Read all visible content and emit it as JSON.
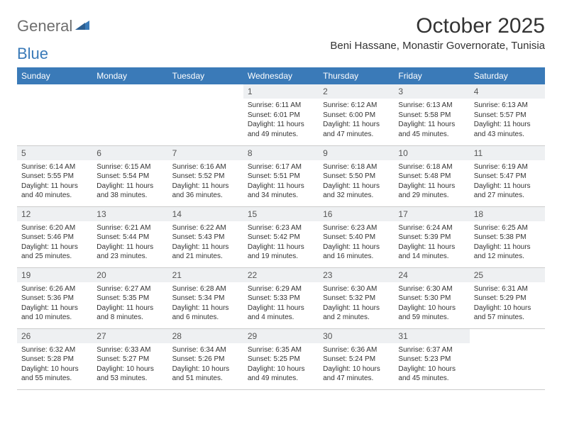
{
  "brand": {
    "part1": "General",
    "part2": "Blue"
  },
  "header": {
    "title": "October 2025",
    "location": "Beni Hassane, Monastir Governorate, Tunisia"
  },
  "colors": {
    "header_bg": "#3a7ab8",
    "header_fg": "#ffffff",
    "daynum_bg": "#eef0f2",
    "text": "#333333",
    "logo_gray": "#6e6e6e",
    "logo_blue": "#3a7ab8"
  },
  "dayNames": [
    "Sunday",
    "Monday",
    "Tuesday",
    "Wednesday",
    "Thursday",
    "Friday",
    "Saturday"
  ],
  "weeks": [
    [
      {
        "empty": true
      },
      {
        "empty": true
      },
      {
        "empty": true
      },
      {
        "num": "1",
        "sunrise": "Sunrise: 6:11 AM",
        "sunset": "Sunset: 6:01 PM",
        "day1": "Daylight: 11 hours",
        "day2": "and 49 minutes."
      },
      {
        "num": "2",
        "sunrise": "Sunrise: 6:12 AM",
        "sunset": "Sunset: 6:00 PM",
        "day1": "Daylight: 11 hours",
        "day2": "and 47 minutes."
      },
      {
        "num": "3",
        "sunrise": "Sunrise: 6:13 AM",
        "sunset": "Sunset: 5:58 PM",
        "day1": "Daylight: 11 hours",
        "day2": "and 45 minutes."
      },
      {
        "num": "4",
        "sunrise": "Sunrise: 6:13 AM",
        "sunset": "Sunset: 5:57 PM",
        "day1": "Daylight: 11 hours",
        "day2": "and 43 minutes."
      }
    ],
    [
      {
        "num": "5",
        "sunrise": "Sunrise: 6:14 AM",
        "sunset": "Sunset: 5:55 PM",
        "day1": "Daylight: 11 hours",
        "day2": "and 40 minutes."
      },
      {
        "num": "6",
        "sunrise": "Sunrise: 6:15 AM",
        "sunset": "Sunset: 5:54 PM",
        "day1": "Daylight: 11 hours",
        "day2": "and 38 minutes."
      },
      {
        "num": "7",
        "sunrise": "Sunrise: 6:16 AM",
        "sunset": "Sunset: 5:52 PM",
        "day1": "Daylight: 11 hours",
        "day2": "and 36 minutes."
      },
      {
        "num": "8",
        "sunrise": "Sunrise: 6:17 AM",
        "sunset": "Sunset: 5:51 PM",
        "day1": "Daylight: 11 hours",
        "day2": "and 34 minutes."
      },
      {
        "num": "9",
        "sunrise": "Sunrise: 6:18 AM",
        "sunset": "Sunset: 5:50 PM",
        "day1": "Daylight: 11 hours",
        "day2": "and 32 minutes."
      },
      {
        "num": "10",
        "sunrise": "Sunrise: 6:18 AM",
        "sunset": "Sunset: 5:48 PM",
        "day1": "Daylight: 11 hours",
        "day2": "and 29 minutes."
      },
      {
        "num": "11",
        "sunrise": "Sunrise: 6:19 AM",
        "sunset": "Sunset: 5:47 PM",
        "day1": "Daylight: 11 hours",
        "day2": "and 27 minutes."
      }
    ],
    [
      {
        "num": "12",
        "sunrise": "Sunrise: 6:20 AM",
        "sunset": "Sunset: 5:46 PM",
        "day1": "Daylight: 11 hours",
        "day2": "and 25 minutes."
      },
      {
        "num": "13",
        "sunrise": "Sunrise: 6:21 AM",
        "sunset": "Sunset: 5:44 PM",
        "day1": "Daylight: 11 hours",
        "day2": "and 23 minutes."
      },
      {
        "num": "14",
        "sunrise": "Sunrise: 6:22 AM",
        "sunset": "Sunset: 5:43 PM",
        "day1": "Daylight: 11 hours",
        "day2": "and 21 minutes."
      },
      {
        "num": "15",
        "sunrise": "Sunrise: 6:23 AM",
        "sunset": "Sunset: 5:42 PM",
        "day1": "Daylight: 11 hours",
        "day2": "and 19 minutes."
      },
      {
        "num": "16",
        "sunrise": "Sunrise: 6:23 AM",
        "sunset": "Sunset: 5:40 PM",
        "day1": "Daylight: 11 hours",
        "day2": "and 16 minutes."
      },
      {
        "num": "17",
        "sunrise": "Sunrise: 6:24 AM",
        "sunset": "Sunset: 5:39 PM",
        "day1": "Daylight: 11 hours",
        "day2": "and 14 minutes."
      },
      {
        "num": "18",
        "sunrise": "Sunrise: 6:25 AM",
        "sunset": "Sunset: 5:38 PM",
        "day1": "Daylight: 11 hours",
        "day2": "and 12 minutes."
      }
    ],
    [
      {
        "num": "19",
        "sunrise": "Sunrise: 6:26 AM",
        "sunset": "Sunset: 5:36 PM",
        "day1": "Daylight: 11 hours",
        "day2": "and 10 minutes."
      },
      {
        "num": "20",
        "sunrise": "Sunrise: 6:27 AM",
        "sunset": "Sunset: 5:35 PM",
        "day1": "Daylight: 11 hours",
        "day2": "and 8 minutes."
      },
      {
        "num": "21",
        "sunrise": "Sunrise: 6:28 AM",
        "sunset": "Sunset: 5:34 PM",
        "day1": "Daylight: 11 hours",
        "day2": "and 6 minutes."
      },
      {
        "num": "22",
        "sunrise": "Sunrise: 6:29 AM",
        "sunset": "Sunset: 5:33 PM",
        "day1": "Daylight: 11 hours",
        "day2": "and 4 minutes."
      },
      {
        "num": "23",
        "sunrise": "Sunrise: 6:30 AM",
        "sunset": "Sunset: 5:32 PM",
        "day1": "Daylight: 11 hours",
        "day2": "and 2 minutes."
      },
      {
        "num": "24",
        "sunrise": "Sunrise: 6:30 AM",
        "sunset": "Sunset: 5:30 PM",
        "day1": "Daylight: 10 hours",
        "day2": "and 59 minutes."
      },
      {
        "num": "25",
        "sunrise": "Sunrise: 6:31 AM",
        "sunset": "Sunset: 5:29 PM",
        "day1": "Daylight: 10 hours",
        "day2": "and 57 minutes."
      }
    ],
    [
      {
        "num": "26",
        "sunrise": "Sunrise: 6:32 AM",
        "sunset": "Sunset: 5:28 PM",
        "day1": "Daylight: 10 hours",
        "day2": "and 55 minutes."
      },
      {
        "num": "27",
        "sunrise": "Sunrise: 6:33 AM",
        "sunset": "Sunset: 5:27 PM",
        "day1": "Daylight: 10 hours",
        "day2": "and 53 minutes."
      },
      {
        "num": "28",
        "sunrise": "Sunrise: 6:34 AM",
        "sunset": "Sunset: 5:26 PM",
        "day1": "Daylight: 10 hours",
        "day2": "and 51 minutes."
      },
      {
        "num": "29",
        "sunrise": "Sunrise: 6:35 AM",
        "sunset": "Sunset: 5:25 PM",
        "day1": "Daylight: 10 hours",
        "day2": "and 49 minutes."
      },
      {
        "num": "30",
        "sunrise": "Sunrise: 6:36 AM",
        "sunset": "Sunset: 5:24 PM",
        "day1": "Daylight: 10 hours",
        "day2": "and 47 minutes."
      },
      {
        "num": "31",
        "sunrise": "Sunrise: 6:37 AM",
        "sunset": "Sunset: 5:23 PM",
        "day1": "Daylight: 10 hours",
        "day2": "and 45 minutes."
      },
      {
        "empty": true
      }
    ]
  ]
}
